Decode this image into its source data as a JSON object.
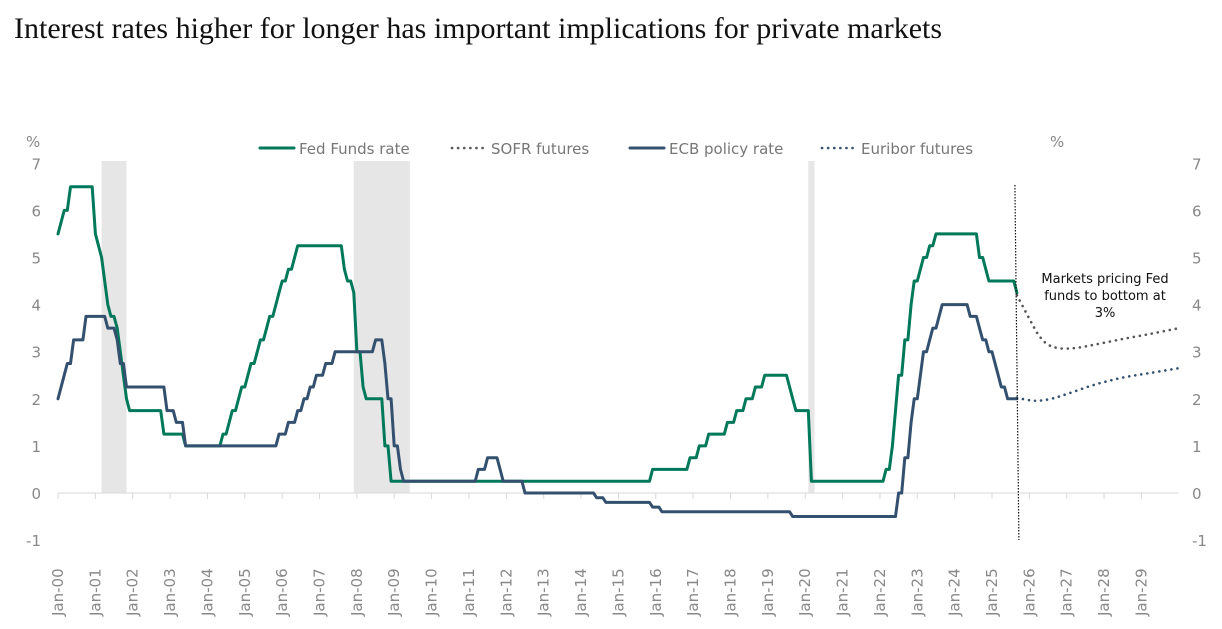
{
  "title": "Interest rates higher for longer has important implications for private markets",
  "chart_data": {
    "type": "line",
    "title": "Interest rates higher for longer has important implications for private markets",
    "ylabel_left": "%",
    "ylabel_right": "%",
    "ylim": [
      -1,
      7
    ],
    "yticks": [
      "-1",
      "0",
      "1",
      "2",
      "3",
      "4",
      "5",
      "6",
      "7"
    ],
    "xlim": [
      "2000-01",
      "2030-01"
    ],
    "xticks": [
      "Jan-00",
      "Jan-01",
      "Jan-02",
      "Jan-03",
      "Jan-04",
      "Jan-05",
      "Jan-06",
      "Jan-07",
      "Jan-08",
      "Jan-09",
      "Jan-10",
      "Jan-11",
      "Jan-12",
      "Jan-13",
      "Jan-14",
      "Jan-15",
      "Jan-16",
      "Jan-17",
      "Jan-18",
      "Jan-19",
      "Jan-20",
      "Jan-21",
      "Jan-22",
      "Jan-23",
      "Jan-24",
      "Jan-25",
      "Jan-26",
      "Jan-27",
      "Jan-28",
      "Jan-29"
    ],
    "grid": false,
    "legend_position": "top",
    "recessions": [
      [
        "2001-03",
        "2001-11"
      ],
      [
        "2007-12",
        "2009-06"
      ],
      [
        "2020-02",
        "2020-04"
      ]
    ],
    "divider_date": "2025-09",
    "annotation": "Markets pricing Fed funds to bottom at 3%",
    "series": [
      {
        "name": "Fed Funds rate",
        "style": "solid",
        "color": "#00785A",
        "end": "2025-09",
        "steps": [
          [
            "2000-01",
            5.5
          ],
          [
            "2000-02",
            5.75
          ],
          [
            "2000-03",
            6.0
          ],
          [
            "2000-05",
            6.5
          ],
          [
            "2001-01",
            5.5
          ],
          [
            "2001-02",
            5.25
          ],
          [
            "2001-03",
            5.0
          ],
          [
            "2001-04",
            4.5
          ],
          [
            "2001-05",
            4.0
          ],
          [
            "2001-06",
            3.75
          ],
          [
            "2001-08",
            3.5
          ],
          [
            "2001-09",
            3.0
          ],
          [
            "2001-10",
            2.5
          ],
          [
            "2001-11",
            2.0
          ],
          [
            "2001-12",
            1.75
          ],
          [
            "2002-11",
            1.25
          ],
          [
            "2003-06",
            1.0
          ],
          [
            "2004-06",
            1.25
          ],
          [
            "2004-08",
            1.5
          ],
          [
            "2004-09",
            1.75
          ],
          [
            "2004-11",
            2.0
          ],
          [
            "2004-12",
            2.25
          ],
          [
            "2005-02",
            2.5
          ],
          [
            "2005-03",
            2.75
          ],
          [
            "2005-05",
            3.0
          ],
          [
            "2005-06",
            3.25
          ],
          [
            "2005-08",
            3.5
          ],
          [
            "2005-09",
            3.75
          ],
          [
            "2005-11",
            4.0
          ],
          [
            "2005-12",
            4.25
          ],
          [
            "2006-01",
            4.5
          ],
          [
            "2006-03",
            4.75
          ],
          [
            "2006-05",
            5.0
          ],
          [
            "2006-06",
            5.25
          ],
          [
            "2007-09",
            4.75
          ],
          [
            "2007-10",
            4.5
          ],
          [
            "2007-12",
            4.25
          ],
          [
            "2008-01",
            3.0
          ],
          [
            "2008-03",
            2.25
          ],
          [
            "2008-04",
            2.0
          ],
          [
            "2008-10",
            1.0
          ],
          [
            "2008-12",
            0.25
          ],
          [
            "2015-12",
            0.5
          ],
          [
            "2016-12",
            0.75
          ],
          [
            "2017-03",
            1.0
          ],
          [
            "2017-06",
            1.25
          ],
          [
            "2017-12",
            1.5
          ],
          [
            "2018-03",
            1.75
          ],
          [
            "2018-06",
            2.0
          ],
          [
            "2018-09",
            2.25
          ],
          [
            "2018-12",
            2.5
          ],
          [
            "2019-08",
            2.25
          ],
          [
            "2019-09",
            2.0
          ],
          [
            "2019-10",
            1.75
          ],
          [
            "2020-03",
            0.25
          ],
          [
            "2022-03",
            0.5
          ],
          [
            "2022-05",
            1.0
          ],
          [
            "2022-06",
            1.75
          ],
          [
            "2022-07",
            2.5
          ],
          [
            "2022-09",
            3.25
          ],
          [
            "2022-11",
            4.0
          ],
          [
            "2022-12",
            4.5
          ],
          [
            "2023-02",
            4.75
          ],
          [
            "2023-03",
            5.0
          ],
          [
            "2023-05",
            5.25
          ],
          [
            "2023-07",
            5.5
          ],
          [
            "2024-09",
            5.0
          ],
          [
            "2024-11",
            4.75
          ],
          [
            "2024-12",
            4.5
          ],
          [
            "2025-09",
            4.25
          ]
        ]
      },
      {
        "name": "SOFR futures",
        "style": "dotted",
        "color": "#555555",
        "points": [
          [
            "2025-09",
            4.2
          ],
          [
            "2026-01",
            3.7
          ],
          [
            "2026-04",
            3.35
          ],
          [
            "2026-07",
            3.15
          ],
          [
            "2026-11",
            3.07
          ],
          [
            "2027-04",
            3.08
          ],
          [
            "2027-10",
            3.15
          ],
          [
            "2028-07",
            3.27
          ],
          [
            "2029-04",
            3.38
          ],
          [
            "2030-01",
            3.5
          ]
        ]
      },
      {
        "name": "ECB policy rate",
        "style": "solid",
        "color": "#34506F",
        "end": "2025-09",
        "steps": [
          [
            "2000-01",
            2.0
          ],
          [
            "2000-02",
            2.25
          ],
          [
            "2000-03",
            2.5
          ],
          [
            "2000-04",
            2.75
          ],
          [
            "2000-06",
            3.25
          ],
          [
            "2000-10",
            3.75
          ],
          [
            "2001-05",
            3.5
          ],
          [
            "2001-08",
            3.25
          ],
          [
            "2001-09",
            2.75
          ],
          [
            "2001-11",
            2.25
          ],
          [
            "2002-12",
            1.75
          ],
          [
            "2003-03",
            1.5
          ],
          [
            "2003-06",
            1.0
          ],
          [
            "2005-12",
            1.25
          ],
          [
            "2006-03",
            1.5
          ],
          [
            "2006-06",
            1.75
          ],
          [
            "2006-08",
            2.0
          ],
          [
            "2006-10",
            2.25
          ],
          [
            "2006-12",
            2.5
          ],
          [
            "2007-03",
            2.75
          ],
          [
            "2007-06",
            3.0
          ],
          [
            "2008-07",
            3.25
          ],
          [
            "2008-10",
            2.75
          ],
          [
            "2008-11",
            2.0
          ],
          [
            "2009-01",
            1.0
          ],
          [
            "2009-03",
            0.5
          ],
          [
            "2009-04",
            0.25
          ],
          [
            "2011-04",
            0.5
          ],
          [
            "2011-07",
            0.75
          ],
          [
            "2011-11",
            0.5
          ],
          [
            "2011-12",
            0.25
          ],
          [
            "2012-07",
            0.0
          ],
          [
            "2014-06",
            -0.1
          ],
          [
            "2014-09",
            -0.2
          ],
          [
            "2015-12",
            -0.3
          ],
          [
            "2016-03",
            -0.4
          ],
          [
            "2019-09",
            -0.5
          ],
          [
            "2022-07",
            0.0
          ],
          [
            "2022-09",
            0.75
          ],
          [
            "2022-11",
            1.5
          ],
          [
            "2022-12",
            2.0
          ],
          [
            "2023-02",
            2.5
          ],
          [
            "2023-03",
            3.0
          ],
          [
            "2023-05",
            3.25
          ],
          [
            "2023-06",
            3.5
          ],
          [
            "2023-08",
            3.75
          ],
          [
            "2023-09",
            4.0
          ],
          [
            "2024-06",
            3.75
          ],
          [
            "2024-09",
            3.5
          ],
          [
            "2024-10",
            3.25
          ],
          [
            "2024-12",
            3.0
          ],
          [
            "2025-02",
            2.75
          ],
          [
            "2025-03",
            2.5
          ],
          [
            "2025-04",
            2.25
          ],
          [
            "2025-06",
            2.0
          ]
        ]
      },
      {
        "name": "Euribor futures",
        "style": "dotted",
        "color": "#34506F",
        "points": [
          [
            "2025-09",
            2.02
          ],
          [
            "2026-01",
            1.97
          ],
          [
            "2026-04",
            1.96
          ],
          [
            "2026-08",
            2.0
          ],
          [
            "2027-01",
            2.1
          ],
          [
            "2027-10",
            2.3
          ],
          [
            "2028-07",
            2.45
          ],
          [
            "2029-04",
            2.55
          ],
          [
            "2030-01",
            2.65
          ]
        ]
      }
    ]
  }
}
